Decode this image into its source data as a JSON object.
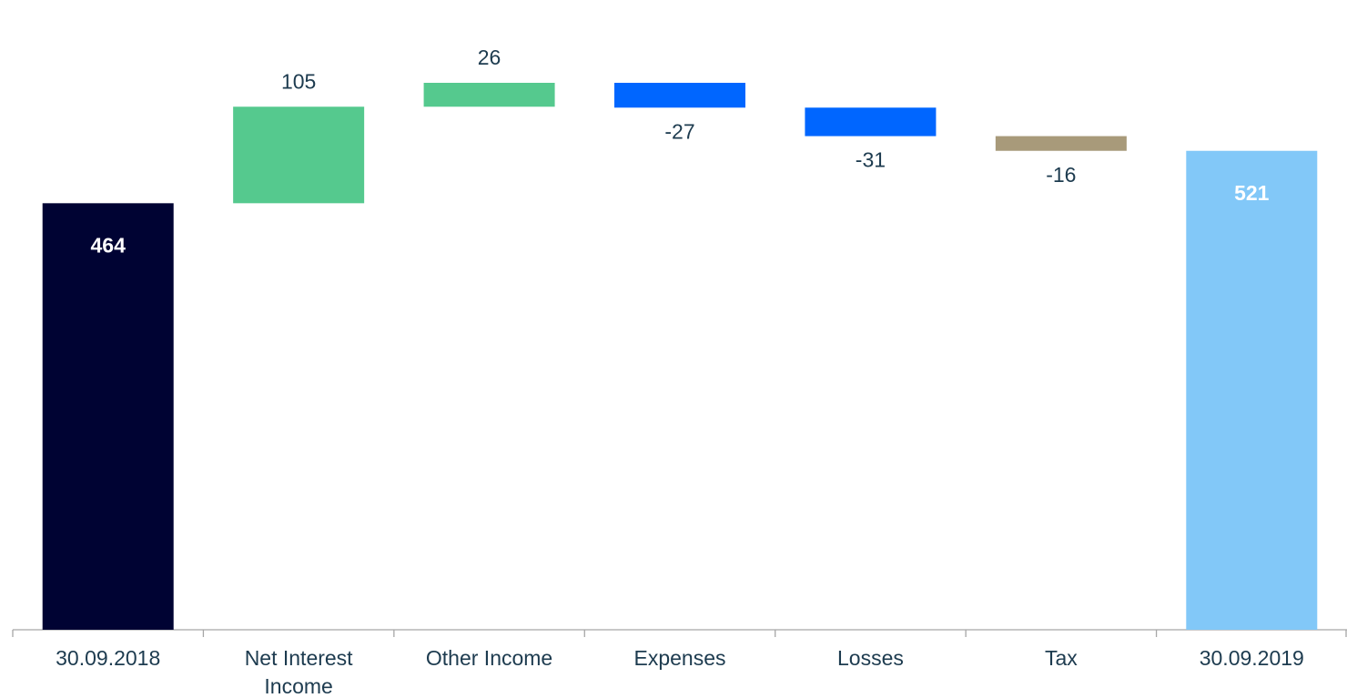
{
  "chart_data": {
    "type": "waterfall",
    "categories": [
      "30.09.2018",
      "Net Interest Income",
      "Other Income",
      "Expenses",
      "Losses",
      "Tax",
      "30.09.2019"
    ],
    "values": [
      464,
      105,
      26,
      -27,
      -31,
      -16,
      521
    ],
    "measure": [
      "total",
      "relative",
      "relative",
      "relative",
      "relative",
      "relative",
      "total"
    ],
    "colors": [
      "#000333",
      "#55c98e",
      "#55c98e",
      "#0066ff",
      "#0066ff",
      "#a89a7a",
      "#82c8f8"
    ]
  }
}
